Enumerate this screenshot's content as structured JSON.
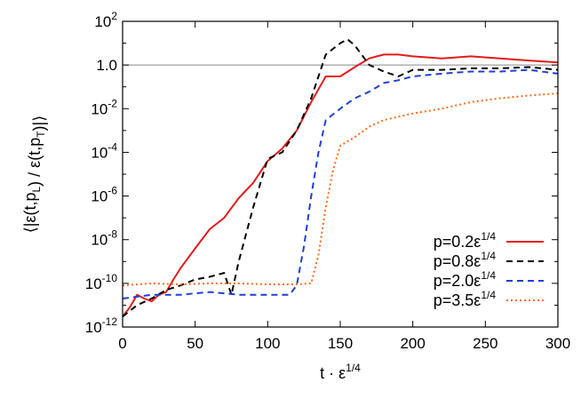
{
  "chart_data": {
    "type": "line",
    "xlabel": "t · ε^{1/4}",
    "ylabel": "⟨|ε(t,p_L) / ε(t,p_T)|⟩",
    "xlim": [
      0,
      300
    ],
    "ylim": [
      1e-12,
      100
    ],
    "yscale": "log",
    "grid": false,
    "legend_position": "bottom-right",
    "x_ticks": [
      {
        "value": 0,
        "label": "0"
      },
      {
        "value": 50,
        "label": "50"
      },
      {
        "value": 100,
        "label": "100"
      },
      {
        "value": 150,
        "label": "150"
      },
      {
        "value": 200,
        "label": "200"
      },
      {
        "value": 250,
        "label": "250"
      },
      {
        "value": 300,
        "label": "300"
      }
    ],
    "y_ticks": [
      {
        "value": 1e-12,
        "base": "10",
        "exp": "-12"
      },
      {
        "value": 1e-10,
        "base": "10",
        "exp": "-10"
      },
      {
        "value": 1e-08,
        "base": "10",
        "exp": "-8"
      },
      {
        "value": 1e-06,
        "base": "10",
        "exp": "-6"
      },
      {
        "value": 0.0001,
        "base": "10",
        "exp": "-4"
      },
      {
        "value": 0.01,
        "base": "10",
        "exp": "-2"
      },
      {
        "value": 1,
        "base": "1.0",
        "exp": "0"
      },
      {
        "value": 100,
        "base": "10",
        "exp": "2"
      }
    ],
    "reference_line": {
      "y": 1,
      "color": "#888888"
    },
    "series": [
      {
        "name": "p=0.2ε^{1/4}",
        "color": "#e41a1c",
        "style": "solid",
        "points": [
          [
            0,
            3e-12
          ],
          [
            5,
            8e-12
          ],
          [
            10,
            3e-11
          ],
          [
            15,
            2e-11
          ],
          [
            20,
            1.5e-11
          ],
          [
            25,
            3e-11
          ],
          [
            30,
            4e-11
          ],
          [
            35,
            1.5e-10
          ],
          [
            40,
            5e-10
          ],
          [
            50,
            4e-09
          ],
          [
            60,
            3e-08
          ],
          [
            70,
            1e-07
          ],
          [
            80,
            8e-07
          ],
          [
            90,
            4e-06
          ],
          [
            100,
            4e-05
          ],
          [
            110,
            0.00015
          ],
          [
            120,
            0.001
          ],
          [
            130,
            0.02
          ],
          [
            140,
            0.3
          ],
          [
            150,
            0.3
          ],
          [
            160,
            0.8
          ],
          [
            170,
            2
          ],
          [
            180,
            3
          ],
          [
            190,
            3
          ],
          [
            200,
            2.5
          ],
          [
            220,
            2
          ],
          [
            240,
            2.5
          ],
          [
            260,
            2
          ],
          [
            280,
            1.6
          ],
          [
            300,
            1.3
          ]
        ]
      },
      {
        "name": "p=0.8ε^{1/4}",
        "color": "#000000",
        "style": "dashed",
        "points": [
          [
            0,
            3e-12
          ],
          [
            10,
            1e-11
          ],
          [
            20,
            2e-11
          ],
          [
            30,
            5e-11
          ],
          [
            40,
            8e-11
          ],
          [
            50,
            1.5e-10
          ],
          [
            60,
            2e-10
          ],
          [
            70,
            3e-10
          ],
          [
            75,
            3e-11
          ],
          [
            80,
            1e-09
          ],
          [
            90,
            3e-07
          ],
          [
            100,
            5e-05
          ],
          [
            110,
            0.0001
          ],
          [
            120,
            0.001
          ],
          [
            130,
            0.03
          ],
          [
            140,
            3
          ],
          [
            150,
            10
          ],
          [
            155,
            15
          ],
          [
            160,
            8
          ],
          [
            170,
            1
          ],
          [
            180,
            0.5
          ],
          [
            190,
            0.3
          ],
          [
            200,
            0.6
          ],
          [
            220,
            0.6
          ],
          [
            240,
            0.7
          ],
          [
            260,
            0.7
          ],
          [
            280,
            0.8
          ],
          [
            300,
            0.6
          ]
        ]
      },
      {
        "name": "p=2.0ε^{1/4}",
        "color": "#1f3fd6",
        "style": "dashed",
        "points": [
          [
            0,
            2e-11
          ],
          [
            20,
            3e-11
          ],
          [
            40,
            3e-11
          ],
          [
            60,
            4e-11
          ],
          [
            80,
            3e-11
          ],
          [
            100,
            3e-11
          ],
          [
            115,
            3e-11
          ],
          [
            120,
            8e-11
          ],
          [
            125,
            5e-09
          ],
          [
            130,
            1e-06
          ],
          [
            135,
            0.0001
          ],
          [
            140,
            0.003
          ],
          [
            150,
            0.01
          ],
          [
            160,
            0.03
          ],
          [
            170,
            0.06
          ],
          [
            180,
            0.15
          ],
          [
            190,
            0.2
          ],
          [
            200,
            0.3
          ],
          [
            220,
            0.4
          ],
          [
            240,
            0.5
          ],
          [
            260,
            0.5
          ],
          [
            280,
            0.6
          ],
          [
            300,
            0.4
          ]
        ]
      },
      {
        "name": "p=3.5ε^{1/4}",
        "color": "#ff6a1a",
        "style": "dotted",
        "points": [
          [
            0,
            8e-11
          ],
          [
            20,
            1e-10
          ],
          [
            40,
            9e-11
          ],
          [
            60,
            1e-10
          ],
          [
            80,
            1e-10
          ],
          [
            100,
            9e-11
          ],
          [
            120,
            9e-11
          ],
          [
            130,
            1e-10
          ],
          [
            135,
            2e-09
          ],
          [
            140,
            3e-07
          ],
          [
            145,
            1.5e-05
          ],
          [
            150,
            0.0002
          ],
          [
            160,
            0.0005
          ],
          [
            170,
            0.0015
          ],
          [
            180,
            0.003
          ],
          [
            200,
            0.006
          ],
          [
            220,
            0.01
          ],
          [
            240,
            0.02
          ],
          [
            260,
            0.03
          ],
          [
            280,
            0.04
          ],
          [
            300,
            0.05
          ]
        ]
      }
    ]
  }
}
